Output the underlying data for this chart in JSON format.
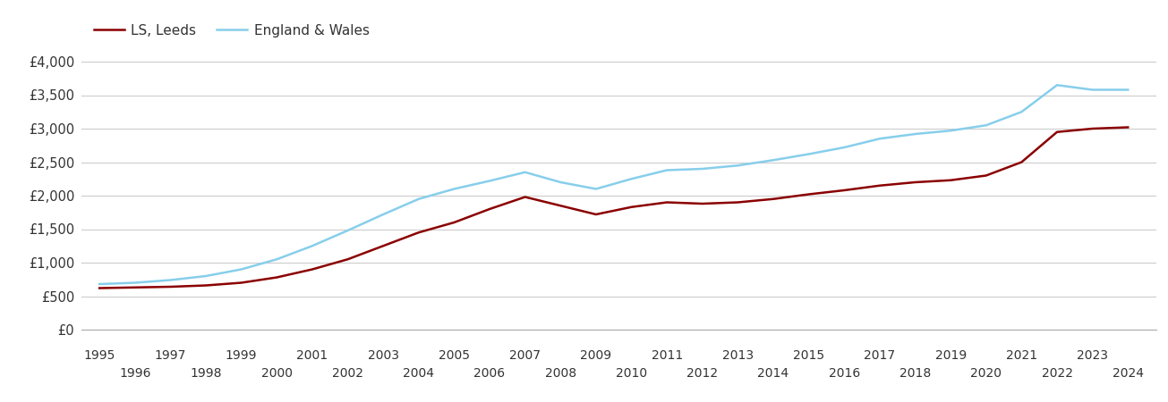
{
  "years": [
    1995,
    1996,
    1997,
    1998,
    1999,
    2000,
    2001,
    2002,
    2003,
    2004,
    2005,
    2006,
    2007,
    2008,
    2009,
    2010,
    2011,
    2012,
    2013,
    2014,
    2015,
    2016,
    2017,
    2018,
    2019,
    2020,
    2021,
    2022,
    2023,
    2024
  ],
  "leeds": [
    620,
    630,
    640,
    660,
    700,
    780,
    900,
    1050,
    1250,
    1450,
    1600,
    1800,
    1980,
    1850,
    1720,
    1830,
    1900,
    1880,
    1900,
    1950,
    2020,
    2080,
    2150,
    2200,
    2230,
    2300,
    2500,
    2950,
    3000,
    3020
  ],
  "england_wales": [
    680,
    700,
    740,
    800,
    900,
    1050,
    1250,
    1480,
    1720,
    1950,
    2100,
    2220,
    2350,
    2200,
    2100,
    2250,
    2380,
    2400,
    2450,
    2530,
    2620,
    2720,
    2850,
    2920,
    2970,
    3050,
    3250,
    3650,
    3580,
    3580
  ],
  "leeds_color": "#8B0000",
  "ew_color": "#87CEEB",
  "legend_labels": [
    "LS, Leeds",
    "England & Wales"
  ],
  "ylim": [
    0,
    4200
  ],
  "yticks": [
    0,
    500,
    1000,
    1500,
    2000,
    2500,
    3000,
    3500,
    4000
  ],
  "ytick_labels": [
    "£0",
    "£500",
    "£1,000",
    "£1,500",
    "£2,000",
    "£2,500",
    "£3,000",
    "£3,500",
    "£4,000"
  ],
  "background_color": "#ffffff",
  "grid_color": "#cccccc",
  "line_width": 1.8,
  "xlim_left": 1994.5,
  "xlim_right": 2024.8
}
